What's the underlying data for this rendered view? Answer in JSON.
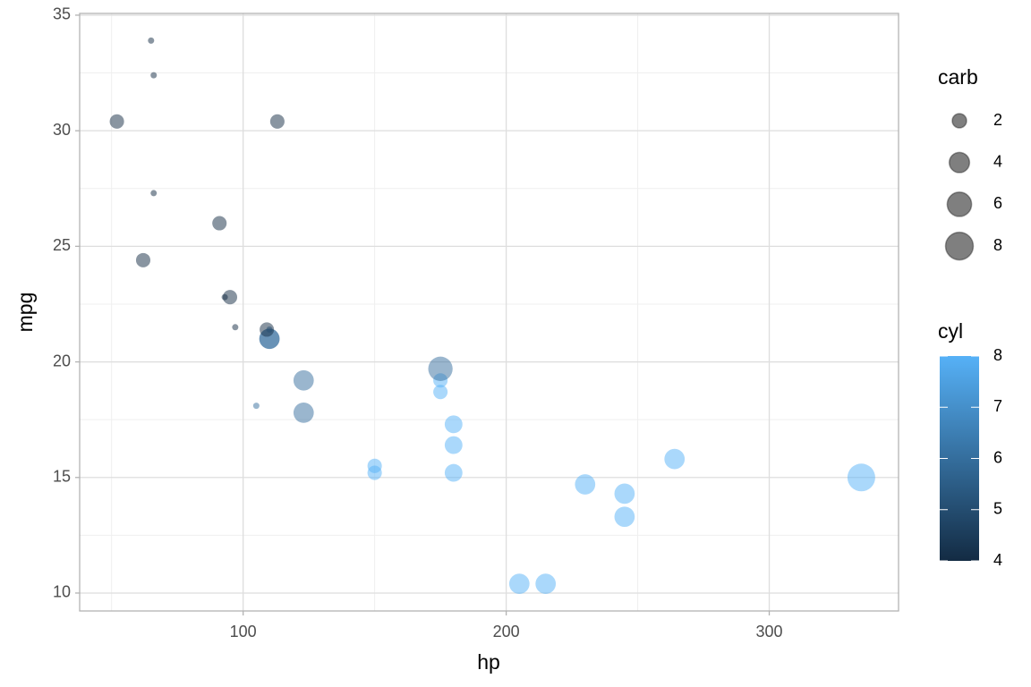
{
  "chart_data": {
    "type": "scatter",
    "x_label": "hp",
    "y_label": "mpg",
    "xlim": [
      37.85,
      349.15
    ],
    "ylim": [
      9.225,
      35.075
    ],
    "xticks": [
      100,
      200,
      300
    ],
    "yticks": [
      10,
      15,
      20,
      25,
      30,
      35
    ],
    "grid": true,
    "series": [
      {
        "x": [
          110,
          110,
          93,
          110,
          175,
          105,
          245,
          62,
          95,
          123,
          123,
          180,
          180,
          180,
          205,
          215,
          230,
          66,
          52,
          65,
          97,
          150,
          150,
          245,
          175,
          66,
          91,
          113,
          264,
          175,
          335,
          109
        ],
        "values": [
          21,
          21,
          22.8,
          21.4,
          18.7,
          18.1,
          14.3,
          24.4,
          22.8,
          19.2,
          17.8,
          16.4,
          17.3,
          15.2,
          10.4,
          10.4,
          14.7,
          32.4,
          30.4,
          33.9,
          21.5,
          15.5,
          15.2,
          13.3,
          19.2,
          27.3,
          26,
          30.4,
          15.8,
          19.7,
          15,
          21.4
        ],
        "size": [
          4,
          4,
          1,
          1,
          2,
          1,
          4,
          2,
          2,
          4,
          4,
          3,
          3,
          3,
          4,
          4,
          4,
          1,
          2,
          1,
          1,
          2,
          2,
          4,
          2,
          1,
          2,
          2,
          4,
          6,
          8,
          2
        ],
        "color": [
          6,
          6,
          4,
          6,
          8,
          6,
          8,
          4,
          4,
          6,
          6,
          8,
          8,
          8,
          8,
          8,
          8,
          4,
          4,
          4,
          4,
          8,
          8,
          8,
          8,
          4,
          4,
          4,
          8,
          6,
          8,
          4
        ]
      }
    ],
    "size_scale": {
      "title": "carb",
      "lim": [
        1,
        8
      ],
      "breaks": [
        2,
        4,
        6,
        8
      ]
    },
    "color_scale": {
      "title": "cyl",
      "lim": [
        4,
        8
      ],
      "ticks": [
        4,
        5,
        6,
        7,
        8
      ],
      "low": "#132B43",
      "high": "#56B1F7"
    }
  }
}
